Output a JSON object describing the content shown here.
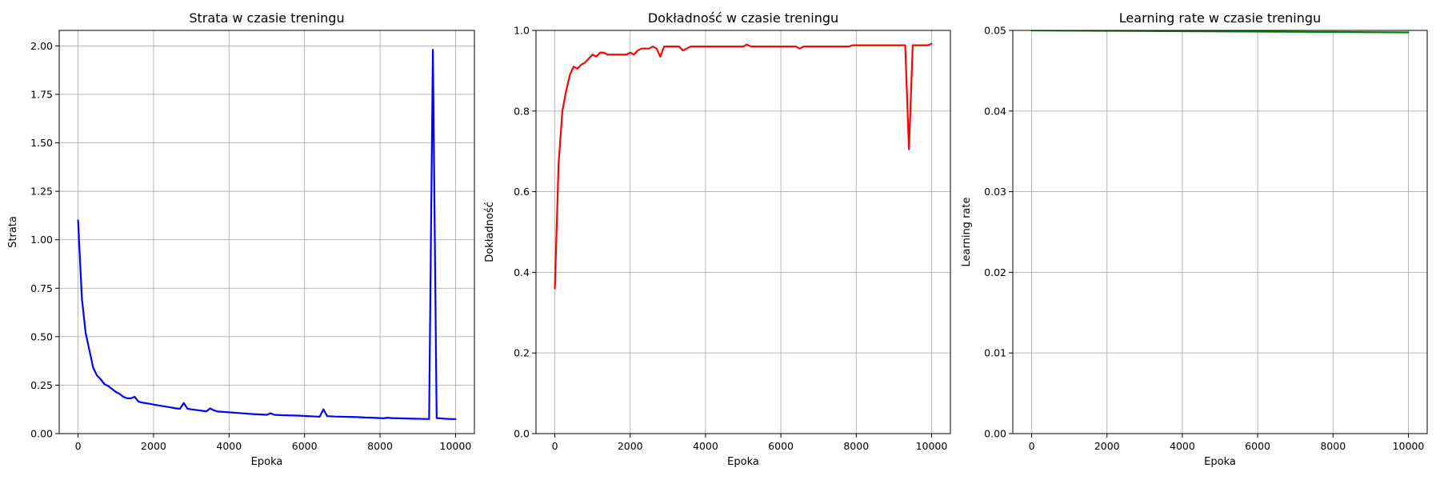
{
  "chart_data": [
    {
      "type": "line",
      "title": "Strata w czasie treningu",
      "xlabel": "Epoka",
      "ylabel": "Strata",
      "xlim": [
        -500,
        10500
      ],
      "ylim": [
        0,
        2.08
      ],
      "xticks": [
        0,
        2000,
        4000,
        6000,
        8000,
        10000
      ],
      "xtick_labels": [
        "0",
        "2000",
        "4000",
        "6000",
        "8000",
        "10000"
      ],
      "yticks": [
        0,
        0.25,
        0.5,
        0.75,
        1.0,
        1.25,
        1.5,
        1.75,
        2.0
      ],
      "ytick_labels": [
        "0.00",
        "0.25",
        "0.50",
        "0.75",
        "1.00",
        "1.25",
        "1.50",
        "1.75",
        "2.00"
      ],
      "grid": true,
      "color": "#0000ff",
      "series": [
        {
          "x": [
            0,
            100,
            200,
            300,
            400,
            500,
            600,
            700,
            800,
            900,
            1000,
            1100,
            1200,
            1300,
            1400,
            1500,
            1600,
            1700,
            1800,
            2000,
            2200,
            2400,
            2600,
            2700,
            2800,
            2900,
            3000,
            3200,
            3400,
            3500,
            3600,
            3700,
            4000,
            4200,
            4400,
            4600,
            4800,
            5000,
            5100,
            5200,
            5400,
            5600,
            5800,
            6000,
            6200,
            6400,
            6500,
            6600,
            6800,
            7000,
            7200,
            7400,
            7600,
            7800,
            8000,
            8100,
            8200,
            8300,
            8500,
            8700,
            8900,
            9100,
            9300,
            9400,
            9500,
            9700,
            9900,
            10000
          ],
          "y": [
            1.1,
            0.7,
            0.52,
            0.43,
            0.34,
            0.3,
            0.28,
            0.255,
            0.245,
            0.23,
            0.215,
            0.205,
            0.19,
            0.182,
            0.182,
            0.19,
            0.165,
            0.16,
            0.157,
            0.15,
            0.143,
            0.137,
            0.13,
            0.128,
            0.158,
            0.128,
            0.125,
            0.12,
            0.115,
            0.13,
            0.12,
            0.114,
            0.11,
            0.107,
            0.104,
            0.101,
            0.099,
            0.097,
            0.105,
            0.097,
            0.095,
            0.094,
            0.093,
            0.091,
            0.089,
            0.087,
            0.125,
            0.09,
            0.088,
            0.087,
            0.086,
            0.085,
            0.083,
            0.082,
            0.08,
            0.079,
            0.082,
            0.08,
            0.079,
            0.078,
            0.077,
            0.076,
            0.075,
            1.98,
            0.08,
            0.077,
            0.075,
            0.075
          ]
        }
      ]
    },
    {
      "type": "line",
      "title": "Dokładność w czasie treningu",
      "xlabel": "Epoka",
      "ylabel": "Dokładność",
      "xlim": [
        -500,
        10500
      ],
      "ylim": [
        0,
        1.0
      ],
      "xticks": [
        0,
        2000,
        4000,
        6000,
        8000,
        10000
      ],
      "xtick_labels": [
        "0",
        "2000",
        "4000",
        "6000",
        "8000",
        "10000"
      ],
      "yticks": [
        0,
        0.2,
        0.4,
        0.6,
        0.8,
        1.0
      ],
      "ytick_labels": [
        "0.0",
        "0.2",
        "0.4",
        "0.6",
        "0.8",
        "1.0"
      ],
      "grid": true,
      "color": "#ff0000",
      "series": [
        {
          "x": [
            0,
            100,
            200,
            300,
            400,
            500,
            600,
            700,
            800,
            900,
            1000,
            1100,
            1200,
            1300,
            1400,
            1600,
            1800,
            1900,
            2000,
            2100,
            2200,
            2300,
            2400,
            2500,
            2600,
            2700,
            2800,
            2900,
            3000,
            3200,
            3300,
            3400,
            3500,
            3600,
            3800,
            4000,
            4500,
            5000,
            5100,
            5200,
            5600,
            6000,
            6400,
            6500,
            6600,
            7000,
            7500,
            7800,
            7900,
            8200,
            8600,
            9000,
            9300,
            9400,
            9500,
            9700,
            9900,
            10000
          ],
          "y": [
            0.36,
            0.67,
            0.8,
            0.85,
            0.89,
            0.91,
            0.905,
            0.915,
            0.92,
            0.93,
            0.94,
            0.935,
            0.945,
            0.945,
            0.94,
            0.94,
            0.94,
            0.94,
            0.945,
            0.94,
            0.95,
            0.955,
            0.955,
            0.955,
            0.96,
            0.955,
            0.935,
            0.96,
            0.96,
            0.96,
            0.96,
            0.95,
            0.955,
            0.96,
            0.96,
            0.96,
            0.96,
            0.96,
            0.965,
            0.96,
            0.96,
            0.96,
            0.96,
            0.955,
            0.96,
            0.96,
            0.96,
            0.96,
            0.963,
            0.963,
            0.963,
            0.963,
            0.963,
            0.705,
            0.963,
            0.963,
            0.963,
            0.967
          ]
        }
      ]
    },
    {
      "type": "line",
      "title": "Learning rate w czasie treningu",
      "xlabel": "Epoka",
      "ylabel": "Learning rate",
      "xlim": [
        -500,
        10500
      ],
      "ylim": [
        0,
        0.05
      ],
      "xticks": [
        0,
        2000,
        4000,
        6000,
        8000,
        10000
      ],
      "xtick_labels": [
        "0",
        "2000",
        "4000",
        "6000",
        "8000",
        "10000"
      ],
      "yticks": [
        0,
        0.01,
        0.02,
        0.03,
        0.04,
        0.05
      ],
      "ytick_labels": [
        "0.00",
        "0.01",
        "0.02",
        "0.03",
        "0.04",
        "0.05"
      ],
      "grid": true,
      "color": "#008000",
      "series": [
        {
          "x": [
            0,
            2000,
            4000,
            6000,
            8000,
            10000
          ],
          "y": [
            0.05,
            0.04995,
            0.0499,
            0.04985,
            0.0498,
            0.04975
          ]
        }
      ]
    }
  ]
}
